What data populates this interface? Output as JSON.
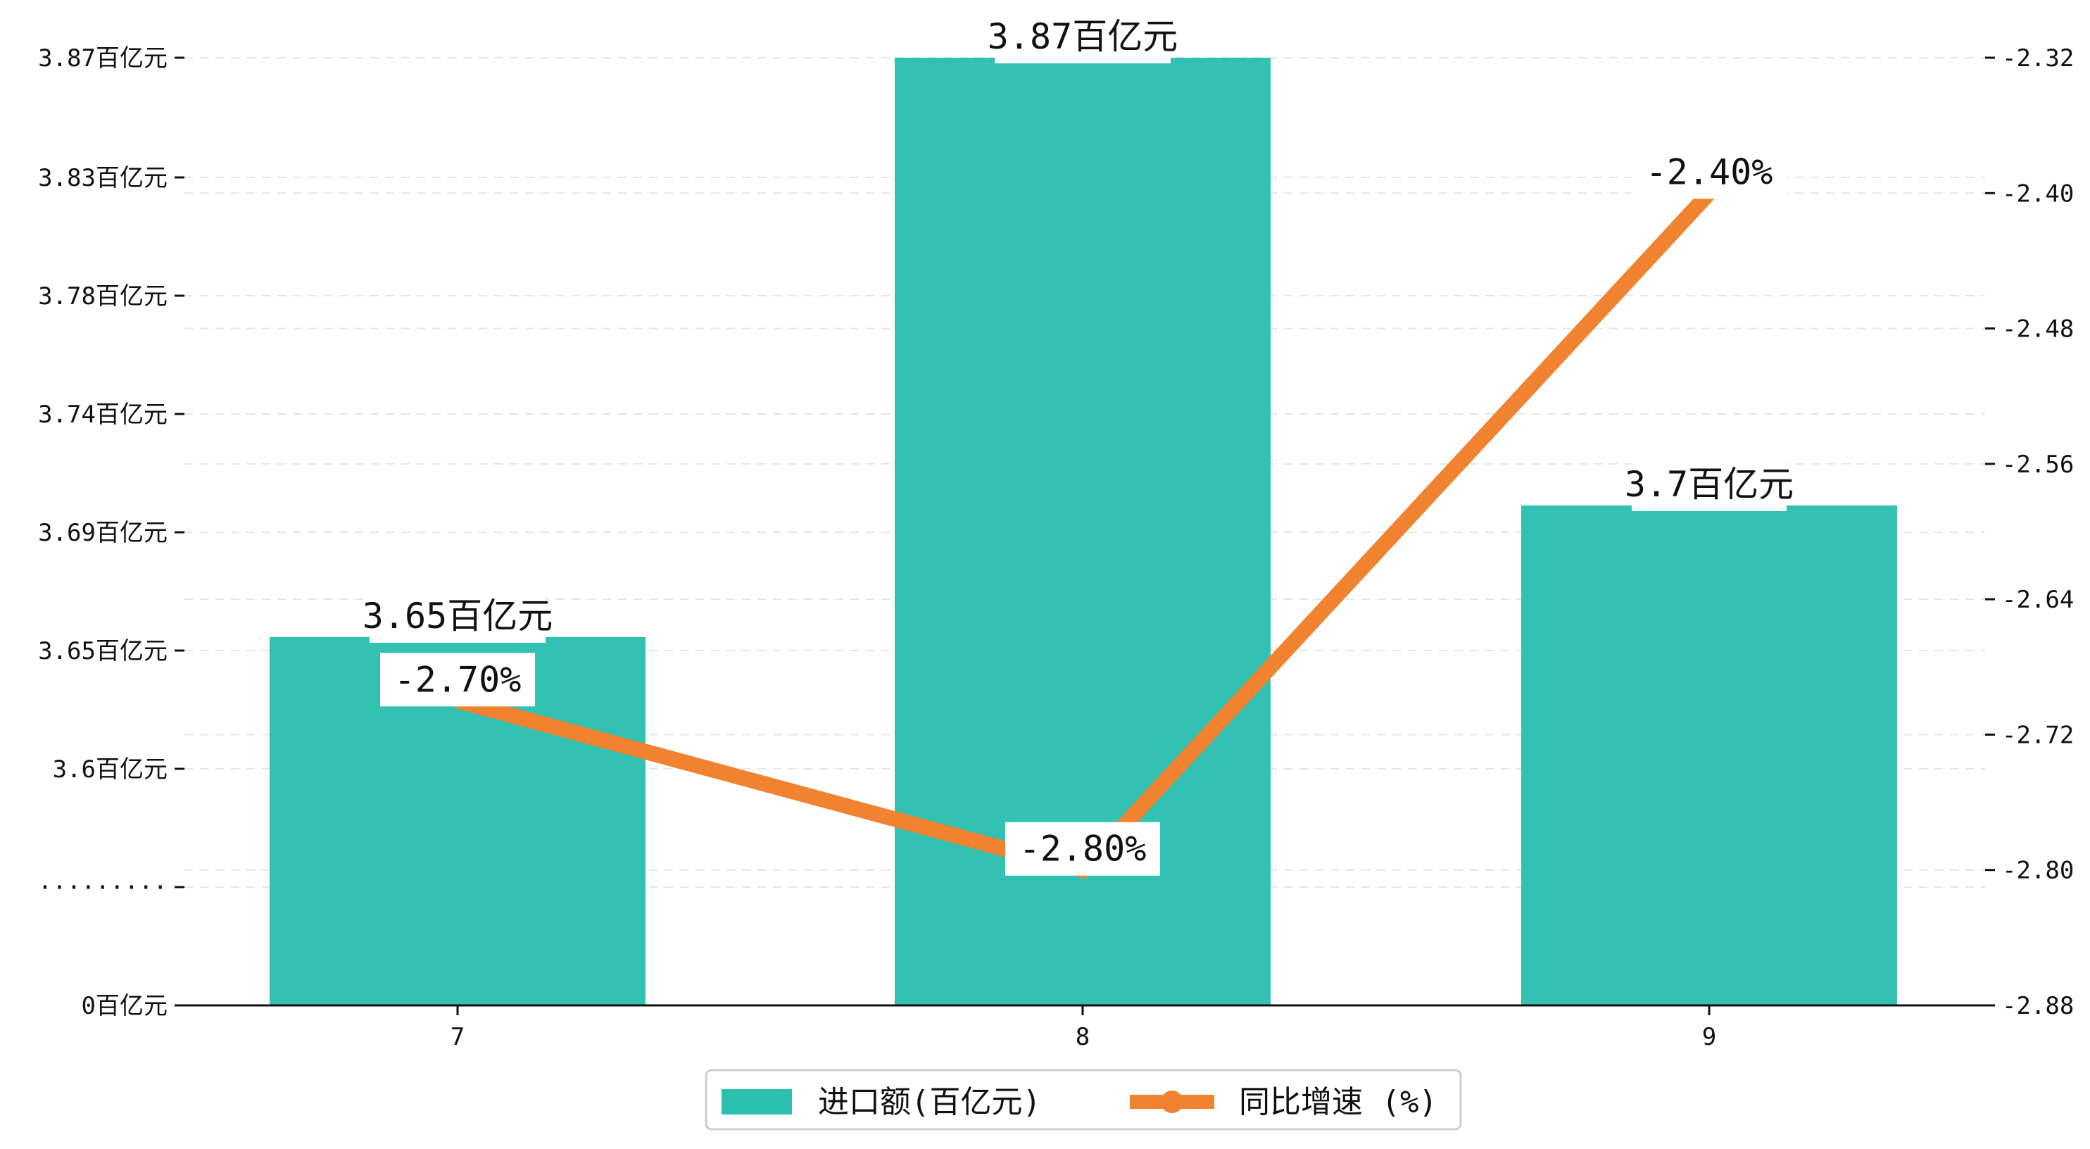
{
  "chart_data": {
    "type": "bar",
    "categories": [
      "7",
      "8",
      "9"
    ],
    "series": [
      {
        "name": "进口额(百亿元)",
        "type": "bar",
        "axis": "left",
        "values": [
          3.65,
          3.87,
          3.7
        ],
        "labels": [
          "3.65百亿元",
          "3.87百亿元",
          "3.7百亿元"
        ],
        "color": "#2bbfb0"
      },
      {
        "name": "同比增速 (%)",
        "type": "line",
        "axis": "right",
        "values": [
          -2.7,
          -2.8,
          -2.4
        ],
        "labels": [
          "-2.70%",
          "-2.80%",
          "-2.40%"
        ],
        "color": "#f08230"
      }
    ],
    "y_left": {
      "ticks": [
        {
          "label": "0百亿元",
          "value": 0
        },
        {
          "label": "·········",
          "value": null
        },
        {
          "label": "3.6百亿元",
          "value": 3.6
        },
        {
          "label": "3.65百亿元",
          "value": 3.645
        },
        {
          "label": "3.69百亿元",
          "value": 3.6875
        },
        {
          "label": "3.74百亿元",
          "value": 3.7375
        },
        {
          "label": "3.78百亿元",
          "value": 3.7825
        },
        {
          "label": "3.83百亿元",
          "value": 3.8275
        },
        {
          "label": "3.87百亿元",
          "value": 3.87
        }
      ],
      "broken_axis": true,
      "display_range": [
        3.6,
        3.87
      ]
    },
    "y_right": {
      "ticks": [
        "-2.88",
        "-2.80",
        "-2.72",
        "-2.64",
        "-2.56",
        "-2.48",
        "-2.40",
        "-2.32"
      ],
      "range": [
        -2.88,
        -2.32
      ]
    },
    "grid": "horizontal dashed",
    "legend_position": "bottom-center"
  }
}
